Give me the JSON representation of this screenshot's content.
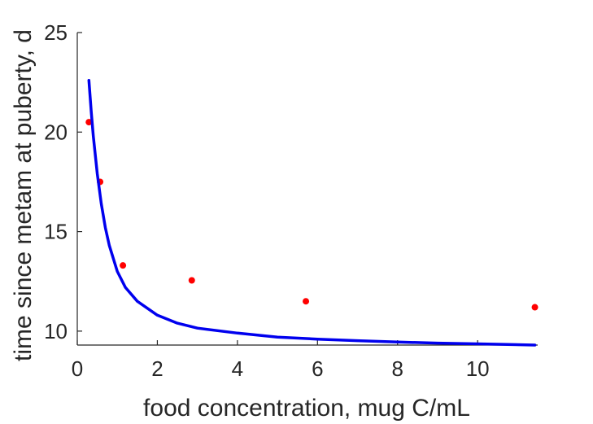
{
  "chart_data": {
    "type": "line",
    "title": "",
    "xlabel": "food concentration, mug C/mL",
    "ylabel": "time since metam at puberty, d",
    "xlim": [
      0,
      11.5
    ],
    "ylim": [
      9.3,
      25
    ],
    "xticks": [
      0,
      2,
      4,
      6,
      8,
      10
    ],
    "yticks": [
      10,
      15,
      20,
      25
    ],
    "grid": false,
    "legend": "none",
    "series": [
      {
        "kind": "scatter",
        "color": "#ff0000",
        "x": [
          0.29,
          0.57,
          1.14,
          2.86,
          5.71,
          11.43
        ],
        "y": [
          20.5,
          17.5,
          13.3,
          12.55,
          11.5,
          11.2
        ]
      },
      {
        "kind": "line",
        "color": "#0000ee",
        "x": [
          0.29,
          0.35,
          0.4,
          0.5,
          0.6,
          0.7,
          0.8,
          1.0,
          1.2,
          1.5,
          2.0,
          2.5,
          3.0,
          4.0,
          5.0,
          6.0,
          7.0,
          8.0,
          9.0,
          10.0,
          11.43
        ],
        "y": [
          22.6,
          21.0,
          19.8,
          17.9,
          16.4,
          15.2,
          14.3,
          13.0,
          12.2,
          11.5,
          10.8,
          10.4,
          10.15,
          9.9,
          9.7,
          9.6,
          9.52,
          9.45,
          9.4,
          9.36,
          9.3
        ]
      }
    ]
  }
}
